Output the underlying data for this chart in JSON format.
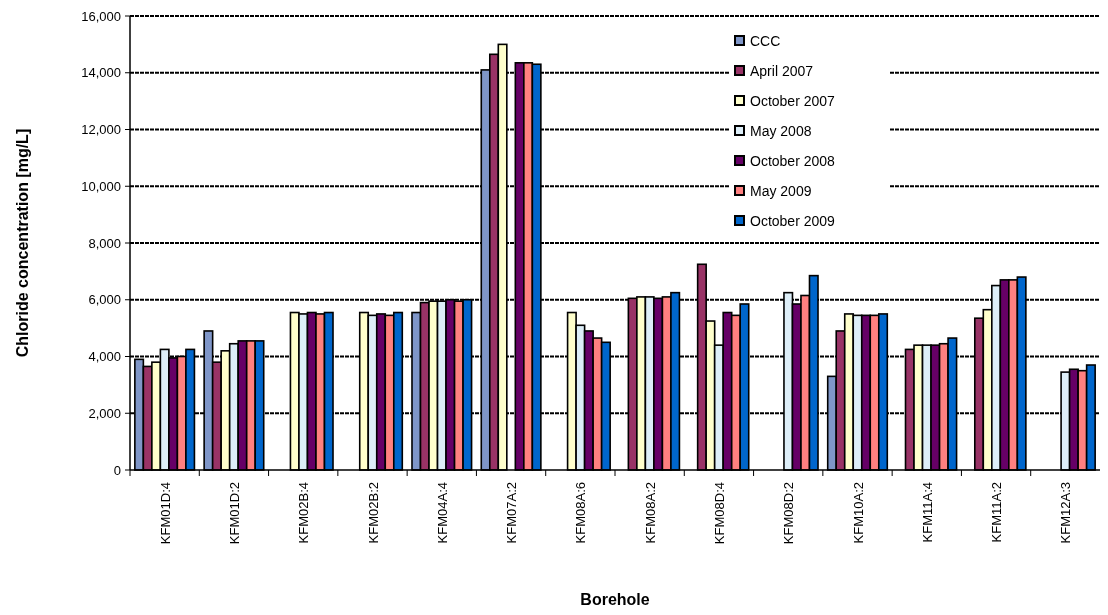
{
  "chart_data": {
    "type": "bar",
    "xlabel": "Borehole",
    "ylabel": "Chloride concentration [mg/L]",
    "categories": [
      "KFM01D:4",
      "KFM01D:2",
      "KFM02B:4",
      "KFM02B:2",
      "KFM04A:4",
      "KFM07A:2",
      "KFM08A:6",
      "KFM08A:2",
      "KFM08D:4",
      "KFM08D:2",
      "KFM10A:2",
      "KFM11A:4",
      "KFM11A:2",
      "KFM12A:3"
    ],
    "series": [
      {
        "name": "CCC",
        "color": "#7f96c8",
        "values": [
          3900,
          4900,
          null,
          null,
          5550,
          14100,
          null,
          null,
          null,
          null,
          3300,
          null,
          null,
          null
        ]
      },
      {
        "name": "April 2007",
        "color": "#993366",
        "values": [
          3650,
          3800,
          null,
          null,
          5900,
          14650,
          null,
          6050,
          7250,
          null,
          4900,
          4250,
          5350,
          null
        ]
      },
      {
        "name": "October 2007",
        "color": "#ffffcc",
        "values": [
          3800,
          4200,
          5550,
          5550,
          5950,
          15000,
          5550,
          6100,
          5250,
          null,
          5500,
          4400,
          5650,
          null
        ]
      },
      {
        "name": "May 2008",
        "color": "#ddeef8",
        "values": [
          4250,
          4450,
          5500,
          5450,
          5950,
          null,
          5100,
          6100,
          4400,
          6250,
          5450,
          4400,
          6500,
          3450
        ]
      },
      {
        "name": "October 2008",
        "color": "#660066",
        "values": [
          3950,
          4550,
          5550,
          5500,
          6000,
          14350,
          4900,
          6050,
          5550,
          5850,
          5450,
          4400,
          6700,
          3550
        ]
      },
      {
        "name": "May 2009",
        "color": "#ff8080",
        "values": [
          4000,
          4550,
          5500,
          5450,
          5950,
          14350,
          4650,
          6100,
          5450,
          6150,
          5450,
          4450,
          6700,
          3500
        ]
      },
      {
        "name": "October 2009",
        "color": "#0066cc",
        "values": [
          4250,
          4550,
          5550,
          5550,
          6000,
          14300,
          4500,
          6250,
          5850,
          6850,
          5500,
          4650,
          6800,
          3700
        ]
      }
    ],
    "ylim": [
      0,
      16000
    ],
    "yticks": [
      {
        "value": 0,
        "label": "0"
      },
      {
        "value": 2000,
        "label": "2,000"
      },
      {
        "value": 4000,
        "label": "4,000"
      },
      {
        "value": 6000,
        "label": "6,000"
      },
      {
        "value": 8000,
        "label": "8,000"
      },
      {
        "value": 10000,
        "label": "10,000"
      },
      {
        "value": 12000,
        "label": "12,000"
      },
      {
        "value": 14000,
        "label": "14,000"
      },
      {
        "value": 16000,
        "label": "16,000"
      }
    ],
    "grid": "y",
    "legend": "top right"
  }
}
